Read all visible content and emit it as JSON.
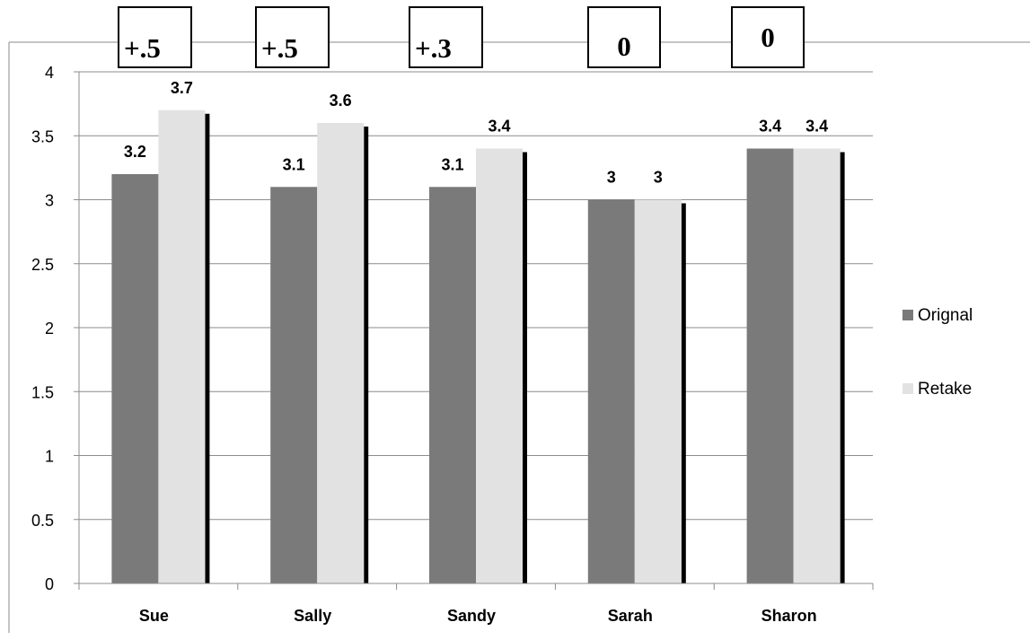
{
  "chart_data": {
    "type": "bar",
    "categories": [
      "Sue",
      "Sally",
      "Sandy",
      "Sarah",
      "Sharon"
    ],
    "series": [
      {
        "name": "Orignal",
        "values": [
          3.2,
          3.1,
          3.1,
          3,
          3.4
        ],
        "data_labels": [
          "3.2",
          "3.1",
          "3.1",
          "3",
          "3.4"
        ]
      },
      {
        "name": "Retake",
        "values": [
          3.7,
          3.6,
          3.4,
          3,
          3.4
        ],
        "data_labels": [
          "3.7",
          "3.6",
          "3.4",
          "3",
          "3.4"
        ]
      }
    ],
    "ylim": [
      0,
      4
    ],
    "yticks": [
      "0",
      "0.5",
      "1",
      "1.5",
      "2",
      "2.5",
      "3",
      "3.5",
      "4"
    ],
    "grid": true,
    "legend_position": "right",
    "colors": {
      "Orignal": "#7a7a7a",
      "Retake": "#e2e2e2"
    },
    "annotations": [
      "+.5",
      "+.5",
      "+.3",
      "0",
      "0"
    ]
  }
}
